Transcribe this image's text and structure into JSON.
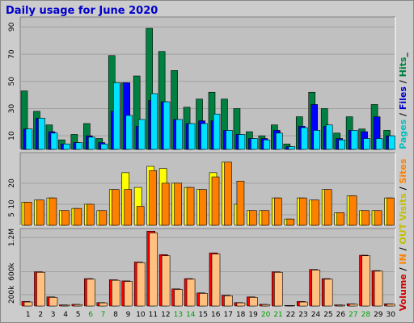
{
  "title": "Daily usage for June 2020",
  "colors": {
    "background": "#cccccc",
    "plot": "#c0c0c0",
    "hits": "#008040",
    "files": "#0000ff",
    "pages": "#00e0ff",
    "visits": "#ffff00",
    "sites": "#ff8000",
    "volume_out": "#ffc080",
    "volume_in": "#ff0000",
    "weekend_label": "#00a000"
  },
  "legend": {
    "top": [
      {
        "text": "Pages",
        "color": "#00c0c0"
      },
      {
        "text": " / ",
        "color": "#000000"
      },
      {
        "text": "Files",
        "color": "#0000cc"
      },
      {
        "text": " / ",
        "color": "#000000"
      },
      {
        "text": "Hits",
        "color": "#008040"
      },
      {
        "text": "_",
        "color": "#000000"
      }
    ],
    "middle": [
      {
        "text": "Visits",
        "color": "#c0c000"
      },
      {
        "text": " / ",
        "color": "#000000"
      },
      {
        "text": "Sites",
        "color": "#ff8000"
      }
    ],
    "bottom": [
      {
        "text": "Volume",
        "color": "#cc0000"
      },
      {
        "text": " / ",
        "color": "#000000"
      },
      {
        "text": "IN",
        "color": "#ff8000"
      },
      {
        "text": " / ",
        "color": "#000000"
      },
      {
        "text": "OUT",
        "color": "#c0c000"
      }
    ]
  },
  "chart_data": [
    {
      "type": "bar",
      "name": "Pages / Files / Hits",
      "categories": [
        "1",
        "2",
        "3",
        "4",
        "5",
        "6",
        "7",
        "8",
        "9",
        "10",
        "11",
        "12",
        "13",
        "14",
        "15",
        "16",
        "17",
        "18",
        "19",
        "20",
        "21",
        "22",
        "23",
        "24",
        "25",
        "26",
        "27",
        "28",
        "29",
        "30"
      ],
      "weekend_days": [
        "6",
        "7",
        "13",
        "14",
        "20",
        "21",
        "27",
        "28"
      ],
      "y_ticks": [
        "10",
        "30",
        "50",
        "70",
        "90"
      ],
      "ylim": [
        0,
        95
      ],
      "series": [
        {
          "name": "Hits",
          "values": [
            43,
            28,
            18,
            7,
            11,
            19,
            8,
            69,
            49,
            54,
            89,
            72,
            58,
            31,
            37,
            42,
            37,
            30,
            13,
            10,
            18,
            4,
            24,
            42,
            30,
            12,
            24,
            15,
            33,
            14
          ]
        },
        {
          "name": "Files",
          "values": [
            15,
            23,
            13,
            4,
            5,
            10,
            5,
            28,
            49,
            17,
            36,
            35,
            22,
            19,
            21,
            21,
            14,
            11,
            8,
            8,
            14,
            2,
            17,
            33,
            17,
            8,
            14,
            13,
            24,
            10
          ]
        },
        {
          "name": "Pages",
          "values": [
            15,
            23,
            12,
            4,
            5,
            9,
            4,
            49,
            25,
            22,
            41,
            35,
            22,
            19,
            19,
            26,
            14,
            11,
            8,
            7,
            12,
            2,
            16,
            14,
            18,
            7,
            14,
            8,
            8,
            10
          ]
        }
      ]
    },
    {
      "type": "bar",
      "name": "Visits / Sites",
      "categories": [
        "1",
        "2",
        "3",
        "4",
        "5",
        "6",
        "7",
        "8",
        "9",
        "10",
        "11",
        "12",
        "13",
        "14",
        "15",
        "16",
        "17",
        "18",
        "19",
        "20",
        "21",
        "22",
        "23",
        "24",
        "25",
        "26",
        "27",
        "28",
        "29",
        "30"
      ],
      "y_ticks": [
        "5",
        "10",
        "20"
      ],
      "ylim": [
        0,
        33
      ],
      "series": [
        {
          "name": "Visits",
          "values": [
            11,
            12,
            13,
            7,
            8,
            10,
            7,
            17,
            25,
            18,
            28,
            27,
            20,
            18,
            17,
            25,
            30,
            10,
            7,
            7,
            13,
            3,
            13,
            12,
            17,
            6,
            14,
            7,
            7,
            13
          ]
        },
        {
          "name": "Sites",
          "values": [
            11,
            12,
            13,
            7,
            8,
            10,
            7,
            17,
            17,
            9,
            26,
            20,
            20,
            18,
            17,
            23,
            30,
            21,
            7,
            7,
            13,
            3,
            13,
            12,
            17,
            6,
            14,
            7,
            7,
            13
          ]
        }
      ]
    },
    {
      "type": "bar",
      "name": "Volume",
      "categories": [
        "1",
        "2",
        "3",
        "4",
        "5",
        "6",
        "7",
        "8",
        "9",
        "10",
        "11",
        "12",
        "13",
        "14",
        "15",
        "16",
        "17",
        "18",
        "19",
        "20",
        "21",
        "22",
        "23",
        "24",
        "25",
        "26",
        "27",
        "28",
        "29",
        "30"
      ],
      "y_ticks": [
        "200k",
        "600k",
        "1.2M"
      ],
      "ylim": [
        0,
        1300000
      ],
      "series": [
        {
          "name": "Volume",
          "values": [
            80000,
            600000,
            160000,
            20000,
            30000,
            480000,
            60000,
            460000,
            440000,
            770000,
            1310000,
            900000,
            300000,
            480000,
            230000,
            930000,
            190000,
            60000,
            160000,
            30000,
            600000,
            10000,
            80000,
            640000,
            480000,
            20000,
            40000,
            890000,
            620000,
            40000
          ]
        },
        {
          "name": "IN",
          "values": [
            70000,
            590000,
            150000,
            15000,
            25000,
            470000,
            55000,
            450000,
            430000,
            760000,
            1280000,
            880000,
            290000,
            470000,
            220000,
            910000,
            180000,
            55000,
            150000,
            25000,
            590000,
            8000,
            70000,
            630000,
            470000,
            15000,
            35000,
            880000,
            610000,
            35000
          ]
        }
      ]
    }
  ]
}
